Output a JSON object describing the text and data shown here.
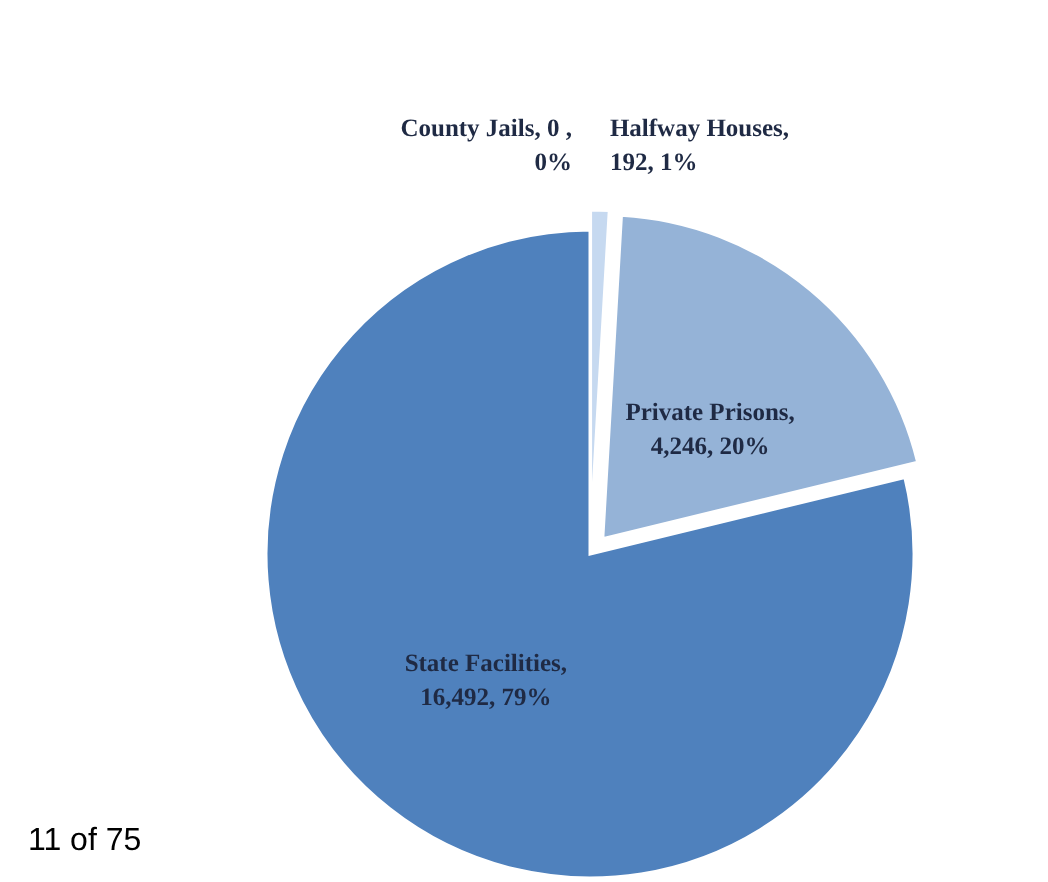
{
  "chart_data": {
    "type": "pie",
    "categories": [
      "County Jails",
      "Halfway Houses",
      "Private Prisons",
      "State Facilities"
    ],
    "values": [
      0,
      192,
      4246,
      16492
    ],
    "colors": [
      "#dbe5f1",
      "#c6d9f0",
      "#95b3d7",
      "#4f81bd"
    ],
    "value_labels": [
      ", 0 ,\n0%",
      ",\n192, 1%",
      ",\n4,246, 20%",
      ",\n16,492, 79%"
    ],
    "annotations": [
      "11 of 75"
    ],
    "legend": false
  }
}
